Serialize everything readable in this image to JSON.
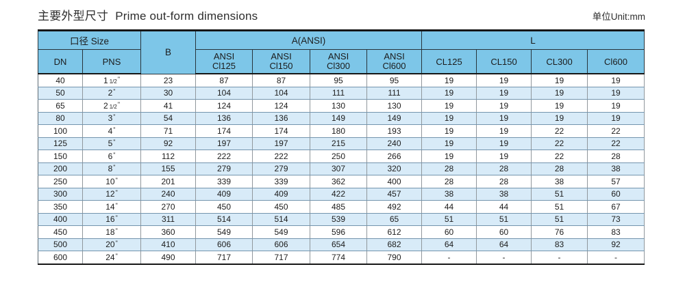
{
  "page": {
    "title_cn": "主要外型尺寸",
    "title_en": "Prime out-form dimensions",
    "unit_label": "单位Unit:mm"
  },
  "colors": {
    "header_blue": "#7dc6e8",
    "stripe_blue": "#d8ebf8",
    "border_dark": "#161616"
  },
  "table": {
    "group_headers": {
      "size": "口径 Size",
      "b": "B",
      "a": "A(ANSI)",
      "l": "L"
    },
    "sub_headers": {
      "dn": "DN",
      "pns": "PNS",
      "ansi_prefix": "ANSI",
      "a_cols": [
        "Cl125",
        "Cl150",
        "Cl300",
        "Cl600"
      ],
      "l_cols": [
        "CL125",
        "CL150",
        "CL300",
        "Cl600"
      ]
    },
    "inch_symbol": "\"",
    "rows": [
      {
        "dn": "40",
        "pns": {
          "n": "1",
          "f": "1/2"
        },
        "b": "23",
        "a": [
          "87",
          "87",
          "95",
          "95"
        ],
        "l": [
          "19",
          "19",
          "19",
          "19"
        ]
      },
      {
        "dn": "50",
        "pns": {
          "n": "2",
          "f": ""
        },
        "b": "30",
        "a": [
          "104",
          "104",
          "111",
          "111"
        ],
        "l": [
          "19",
          "19",
          "19",
          "19"
        ]
      },
      {
        "dn": "65",
        "pns": {
          "n": "2",
          "f": "1/2"
        },
        "b": "41",
        "a": [
          "124",
          "124",
          "130",
          "130"
        ],
        "l": [
          "19",
          "19",
          "19",
          "19"
        ]
      },
      {
        "dn": "80",
        "pns": {
          "n": "3",
          "f": ""
        },
        "b": "54",
        "a": [
          "136",
          "136",
          "149",
          "149"
        ],
        "l": [
          "19",
          "19",
          "19",
          "19"
        ]
      },
      {
        "dn": "100",
        "pns": {
          "n": "4",
          "f": ""
        },
        "b": "71",
        "a": [
          "174",
          "174",
          "180",
          "193"
        ],
        "l": [
          "19",
          "19",
          "22",
          "22"
        ]
      },
      {
        "dn": "125",
        "pns": {
          "n": "5",
          "f": ""
        },
        "b": "92",
        "a": [
          "197",
          "197",
          "215",
          "240"
        ],
        "l": [
          "19",
          "19",
          "22",
          "22"
        ]
      },
      {
        "dn": "150",
        "pns": {
          "n": "6",
          "f": ""
        },
        "b": "112",
        "a": [
          "222",
          "222",
          "250",
          "266"
        ],
        "l": [
          "19",
          "19",
          "22",
          "28"
        ]
      },
      {
        "dn": "200",
        "pns": {
          "n": "8",
          "f": ""
        },
        "b": "155",
        "a": [
          "279",
          "279",
          "307",
          "320"
        ],
        "l": [
          "28",
          "28",
          "28",
          "38"
        ]
      },
      {
        "dn": "250",
        "pns": {
          "n": "10",
          "f": ""
        },
        "b": "201",
        "a": [
          "339",
          "339",
          "362",
          "400"
        ],
        "l": [
          "28",
          "28",
          "38",
          "57"
        ]
      },
      {
        "dn": "300",
        "pns": {
          "n": "12",
          "f": ""
        },
        "b": "240",
        "a": [
          "409",
          "409",
          "422",
          "457"
        ],
        "l": [
          "38",
          "38",
          "51",
          "60"
        ]
      },
      {
        "dn": "350",
        "pns": {
          "n": "14",
          "f": ""
        },
        "b": "270",
        "a": [
          "450",
          "450",
          "485",
          "492"
        ],
        "l": [
          "44",
          "44",
          "51",
          "67"
        ]
      },
      {
        "dn": "400",
        "pns": {
          "n": "16",
          "f": ""
        },
        "b": "311",
        "a": [
          "514",
          "514",
          "539",
          "65"
        ],
        "l": [
          "51",
          "51",
          "51",
          "73"
        ]
      },
      {
        "dn": "450",
        "pns": {
          "n": "18",
          "f": ""
        },
        "b": "360",
        "a": [
          "549",
          "549",
          "596",
          "612"
        ],
        "l": [
          "60",
          "60",
          "76",
          "83"
        ]
      },
      {
        "dn": "500",
        "pns": {
          "n": "20",
          "f": ""
        },
        "b": "410",
        "a": [
          "606",
          "606",
          "654",
          "682"
        ],
        "l": [
          "64",
          "64",
          "83",
          "92"
        ]
      },
      {
        "dn": "600",
        "pns": {
          "n": "24",
          "f": ""
        },
        "b": "490",
        "a": [
          "717",
          "717",
          "774",
          "790"
        ],
        "l": [
          "-",
          "-",
          "-",
          "-"
        ]
      }
    ]
  }
}
